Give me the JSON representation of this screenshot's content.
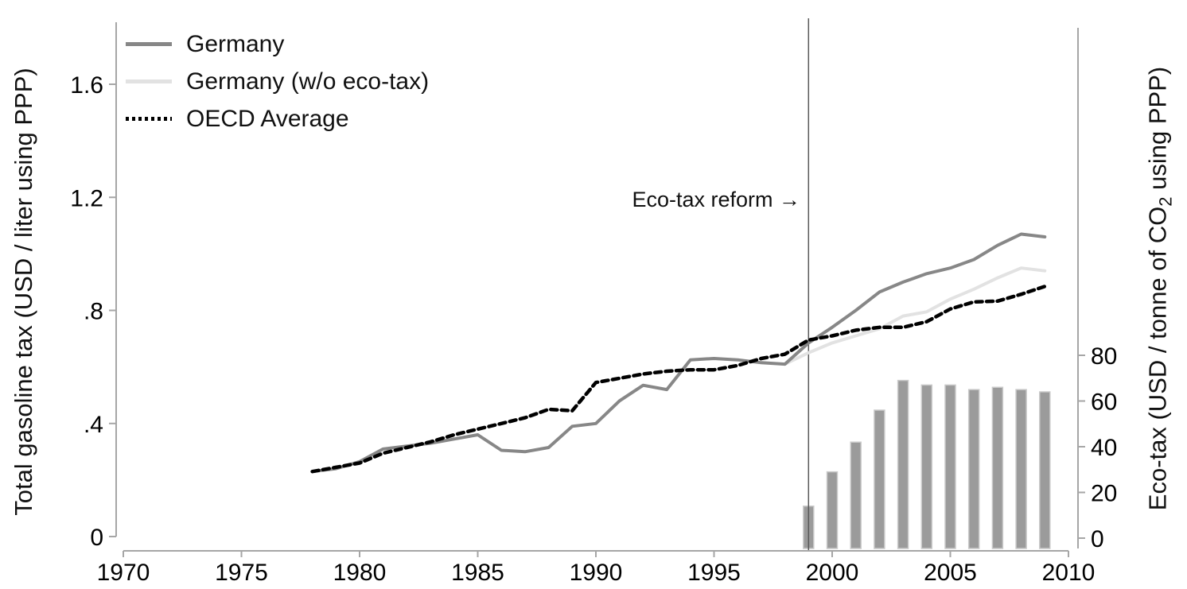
{
  "figure": {
    "annotation": "Eco-tax reform →",
    "left_axis_title": "Total gasoline tax (USD / liter using PPP)",
    "right_axis_title_pre": "Eco-tax (USD / tonne of CO",
    "right_axis_title_sub": "2",
    "right_axis_title_post": " using PPP)"
  },
  "legend": [
    {
      "label": "Germany",
      "color": "#878787",
      "style": "solid"
    },
    {
      "label": "Germany (w/o eco-tax)",
      "color": "#e2e2e2",
      "style": "solid"
    },
    {
      "label": "OECD Average",
      "color": "#000000",
      "style": "dotted"
    }
  ],
  "colors": {
    "germany_line": "#878787",
    "germany_wo_ecotax_line": "#e2e2e2",
    "oecd_line": "#000000",
    "bar_fill": "#9b9b9b",
    "bar_stroke": "#c9c9c9",
    "axis_line": "#a6a6a6",
    "reform_line": "#5a5a5a",
    "tick_label": "#000000"
  },
  "chart_data": {
    "type": "line",
    "title": "",
    "xlabel": "",
    "x_axis": {
      "ticks": [
        1970,
        1975,
        1980,
        1985,
        1990,
        1995,
        2000,
        2005,
        2010
      ],
      "range": [
        1970,
        2010
      ]
    },
    "left_axis": {
      "label": "Total gasoline tax (USD / liter using PPP)",
      "tick_labels": [
        "0",
        ".4",
        ".8",
        "1.2",
        "1.6"
      ],
      "tick_values": [
        0,
        0.4,
        0.8,
        1.2,
        1.6
      ],
      "range": [
        0,
        1.82
      ]
    },
    "right_axis": {
      "label": "Eco-tax (USD / tonne of CO2 using PPP)",
      "tick_labels": [
        "0",
        "20",
        "40",
        "60",
        "80"
      ],
      "tick_values": [
        0,
        20,
        40,
        60,
        80
      ],
      "range": [
        0,
        227
      ]
    },
    "reform_year": 1999,
    "series": [
      {
        "name": "Germany (w/o eco-tax)",
        "style": "solid",
        "color": "#e2e2e2",
        "width": 4,
        "x": [
          1998,
          1999,
          2000,
          2001,
          2002,
          2003,
          2004,
          2005,
          2006,
          2007,
          2008,
          2009
        ],
        "y": [
          0.61,
          0.65,
          0.685,
          0.71,
          0.735,
          0.78,
          0.795,
          0.84,
          0.875,
          0.915,
          0.95,
          0.94
        ]
      },
      {
        "name": "Germany",
        "style": "solid",
        "color": "#878787",
        "width": 4,
        "x": [
          1978,
          1979,
          1980,
          1981,
          1982,
          1983,
          1984,
          1985,
          1986,
          1987,
          1988,
          1989,
          1990,
          1991,
          1992,
          1993,
          1994,
          1995,
          1996,
          1997,
          1998,
          1999,
          2000,
          2001,
          2002,
          2003,
          2004,
          2005,
          2006,
          2007,
          2008,
          2009
        ],
        "y": [
          0.23,
          0.24,
          0.265,
          0.31,
          0.32,
          0.33,
          0.345,
          0.36,
          0.305,
          0.3,
          0.315,
          0.39,
          0.4,
          0.48,
          0.535,
          0.52,
          0.625,
          0.63,
          0.625,
          0.615,
          0.61,
          0.685,
          0.74,
          0.8,
          0.865,
          0.9,
          0.93,
          0.95,
          0.98,
          1.03,
          1.07,
          1.06
        ]
      },
      {
        "name": "OECD Average",
        "style": "dashed",
        "color": "#000000",
        "width": 4.5,
        "x": [
          1978,
          1979,
          1980,
          1981,
          1982,
          1983,
          1984,
          1985,
          1986,
          1987,
          1988,
          1989,
          1990,
          1991,
          1992,
          1993,
          1994,
          1995,
          1996,
          1997,
          1998,
          1999,
          2000,
          2001,
          2002,
          2003,
          2004,
          2005,
          2006,
          2007,
          2008,
          2009
        ],
        "y": [
          0.23,
          0.245,
          0.26,
          0.295,
          0.315,
          0.335,
          0.36,
          0.38,
          0.4,
          0.42,
          0.45,
          0.445,
          0.545,
          0.56,
          0.575,
          0.585,
          0.59,
          0.59,
          0.605,
          0.63,
          0.645,
          0.695,
          0.71,
          0.73,
          0.74,
          0.74,
          0.76,
          0.805,
          0.83,
          0.833,
          0.857,
          0.885
        ]
      }
    ],
    "bars": {
      "name": "Eco-tax",
      "axis": "right",
      "years": [
        1999,
        2000,
        2001,
        2002,
        2003,
        2004,
        2005,
        2006,
        2007,
        2008,
        2009
      ],
      "values": [
        14,
        29,
        42,
        56,
        69,
        67,
        67,
        65,
        66,
        65,
        64
      ]
    }
  }
}
